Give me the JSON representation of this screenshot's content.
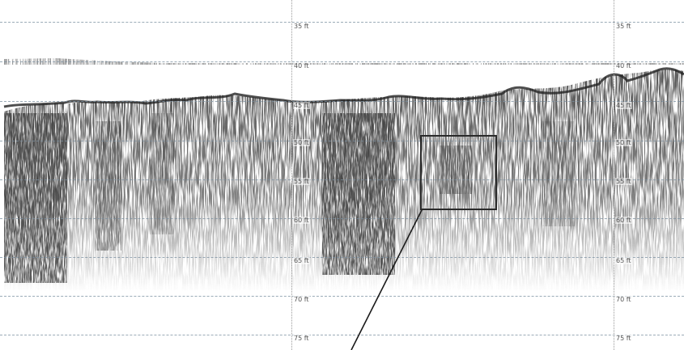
{
  "depth_scale": {
    "unit": "ft",
    "labels": [
      "35 ft",
      "40 ft",
      "45 ft",
      "50 ft",
      "55 ft",
      "60 ft",
      "65 ft",
      "70 ft",
      "75 ft"
    ]
  },
  "colors": {
    "background": "#ffffff",
    "echo": "#1a1a1a",
    "grid": "#7a8fa0",
    "callout": "#2a2a2a"
  }
}
